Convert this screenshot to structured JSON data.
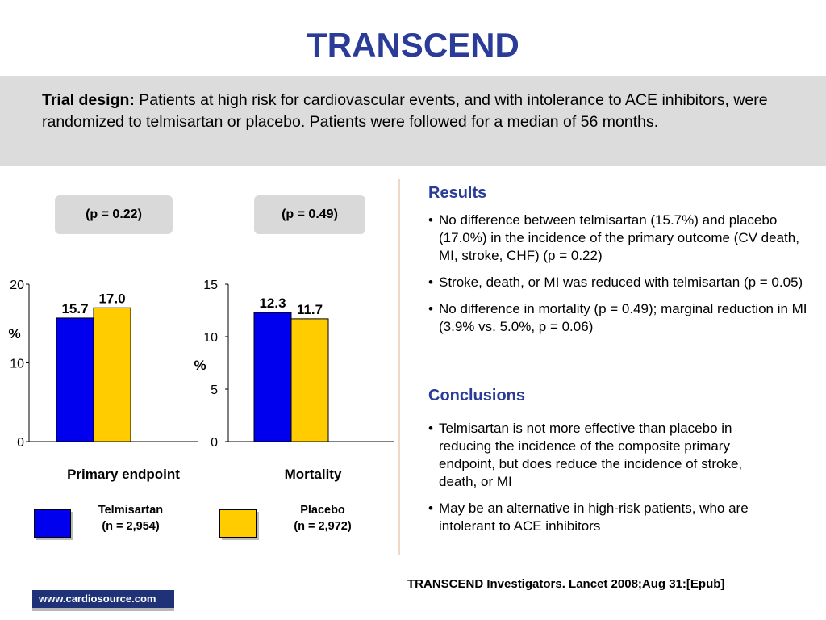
{
  "title": "TRANSCEND",
  "trial_design": {
    "label": "Trial design:",
    "text": "Patients at high risk for cardiovascular events, and with intolerance to ACE inhibitors, were randomized to telmisartan or placebo. Patients were followed for a median of 56 months."
  },
  "colors": {
    "title": "#2a3c98",
    "telmisartan": "#0000ee",
    "placebo": "#ffcc00",
    "design_bg": "#dcdcdc"
  },
  "charts": [
    {
      "pvalue": "(p = 0.22)",
      "caption": "Primary endpoint",
      "ylabel": "%"
    },
    {
      "pvalue": "(p = 0.49)",
      "caption": "Mortality",
      "ylabel": "%"
    }
  ],
  "legend": {
    "telmisartan": {
      "line1": "Telmisartan",
      "line2": "(n = 2,954)"
    },
    "placebo": {
      "line1": "Placebo",
      "line2": "(n = 2,972)"
    }
  },
  "chart_data": [
    {
      "type": "bar",
      "categories": [
        "Primary endpoint"
      ],
      "series": [
        {
          "name": "Telmisartan",
          "values": [
            15.7
          ]
        },
        {
          "name": "Placebo",
          "values": [
            17.0
          ]
        }
      ],
      "xlabel": "Primary endpoint",
      "ylabel": "%",
      "ylim": [
        0,
        20
      ],
      "yticks": [
        0,
        10,
        20
      ],
      "data_labels": [
        "15.7",
        "17.0"
      ]
    },
    {
      "type": "bar",
      "categories": [
        "Mortality"
      ],
      "series": [
        {
          "name": "Telmisartan",
          "values": [
            12.3
          ]
        },
        {
          "name": "Placebo",
          "values": [
            11.7
          ]
        }
      ],
      "xlabel": "Mortality",
      "ylabel": "%",
      "ylim": [
        0,
        15
      ],
      "yticks": [
        0,
        5,
        10,
        15
      ],
      "data_labels": [
        "12.3",
        "11.7"
      ]
    }
  ],
  "results": {
    "heading": "Results",
    "items": [
      "No difference between telmisartan (15.7%) and placebo (17.0%) in the incidence of the primary outcome (CV death, MI, stroke, CHF) (p = 0.22)",
      "Stroke, death, or MI was reduced with telmisartan (p = 0.05)",
      "No difference in mortality (p = 0.49); marginal reduction in MI (3.9% vs. 5.0%, p = 0.06)"
    ]
  },
  "conclusions": {
    "heading": "Conclusions",
    "items": [
      "Telmisartan is not more effective than placebo in reducing the incidence of the composite primary endpoint, but does reduce the incidence of stroke, death, or MI",
      "May be an alternative in high-risk patients, who are intolerant to ACE inhibitors"
    ]
  },
  "citation": "TRANSCEND Investigators. Lancet 2008;Aug 31:[Epub]",
  "site": "www.cardiosource.com"
}
